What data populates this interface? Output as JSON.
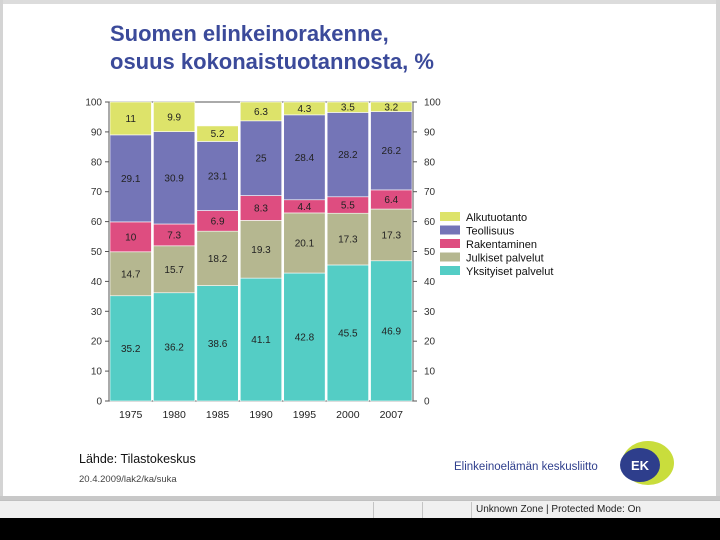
{
  "slide": {
    "title_line1": "Suomen elinkeinorakenne,",
    "title_line2": "osuus kokonaistuotannosta, %",
    "source": "Lähde: Tilastokeskus",
    "date_code": "20.4.2009/lak2/ka/suka"
  },
  "logo": {
    "name": "Elinkeinoelämän keskusliitto",
    "mark": "EK"
  },
  "statusbar": {
    "text": "Unknown Zone | Protected Mode: On"
  },
  "colors": {
    "Alkutuotanto": "#dde36a",
    "Teollisuus": "#7475b7",
    "Rakentaminen": "#de4d80",
    "Julkiset palvelut": "#b5b790",
    "Yksityiset palvelut": "#54cdc5",
    "title": "#3b4a9a"
  },
  "chart_data": {
    "type": "bar",
    "stacked": true,
    "categories": [
      "1975",
      "1980",
      "1985",
      "1990",
      "1995",
      "2000",
      "2007"
    ],
    "series": [
      {
        "name": "Yksityiset palvelut",
        "values": [
          35.2,
          36.2,
          38.6,
          41.1,
          42.8,
          45.5,
          46.9
        ],
        "labels": [
          "35.2",
          "36.2",
          "38.6",
          "41.1",
          "42.8",
          "45.5",
          "46.9"
        ]
      },
      {
        "name": "Julkiset palvelut",
        "values": [
          14.7,
          15.7,
          18.2,
          19.3,
          20.1,
          17.3,
          17.3
        ],
        "labels": [
          "14.7",
          "15.7",
          "18.2",
          "19.3",
          "20.1",
          "17.3",
          "17.3"
        ]
      },
      {
        "name": "Rakentaminen",
        "values": [
          10,
          7.3,
          6.9,
          8.3,
          4.4,
          5.5,
          6.4
        ],
        "labels": [
          "10",
          "7.3",
          "6.9",
          "8.3",
          "4.4",
          "5.5",
          "6.4"
        ]
      },
      {
        "name": "Teollisuus",
        "values": [
          29.1,
          30.9,
          23.1,
          25,
          28.4,
          28.2,
          26.2
        ],
        "labels": [
          "29.1",
          "30.9",
          "23.1",
          "25",
          "28.4",
          "28.2",
          "26.2"
        ]
      },
      {
        "name": "Alkutuotanto",
        "values": [
          11,
          9.9,
          5.2,
          6.3,
          4.3,
          3.5,
          3.2
        ],
        "labels": [
          "11",
          "9.9",
          "5.2",
          "6.3",
          "4.3",
          "3.5",
          "3.2"
        ]
      }
    ],
    "legend": [
      "Alkutuotanto",
      "Teollisuus",
      "Rakentaminen",
      "Julkiset palvelut",
      "Yksityiset palvelut"
    ],
    "yticks": [
      "0",
      "10",
      "20",
      "30",
      "40",
      "50",
      "60",
      "70",
      "80",
      "90",
      "100"
    ],
    "ylim": [
      0,
      100
    ],
    "legend_position": "right"
  }
}
